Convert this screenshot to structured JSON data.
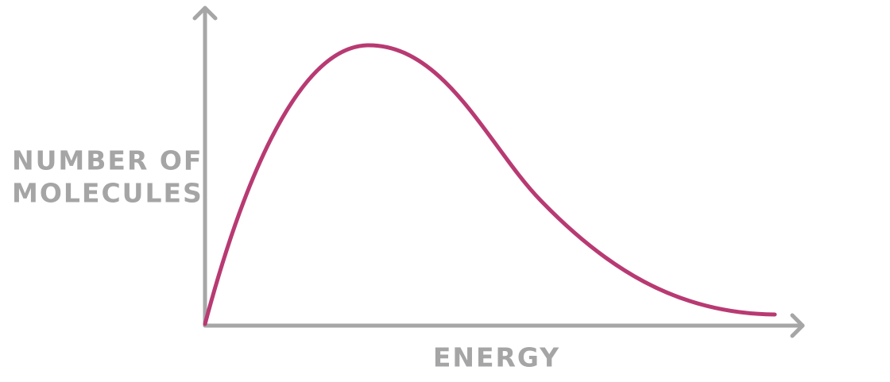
{
  "axes": {
    "y_label": [
      "NUMBER OF",
      "MOLECULES"
    ],
    "x_label": "ENERGY"
  }
}
